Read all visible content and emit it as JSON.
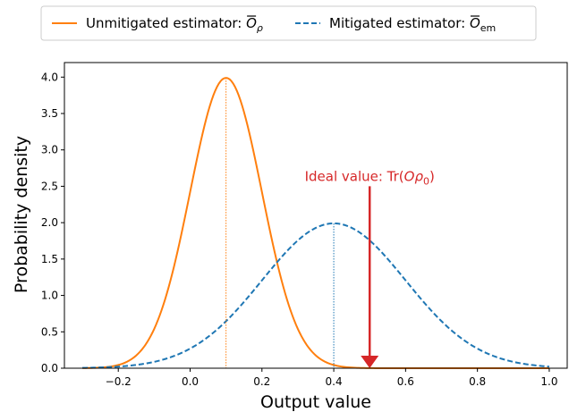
{
  "chart_data": {
    "type": "line",
    "xlabel": "Output value",
    "ylabel": "Probability density",
    "xlim": [
      -0.35,
      1.05
    ],
    "ylim": [
      0,
      4.2
    ],
    "xticks": [
      -0.2,
      0.0,
      0.2,
      0.4,
      0.6,
      0.8,
      1.0
    ],
    "xtick_labels": [
      "−0.2",
      "0.0",
      "0.2",
      "0.4",
      "0.6",
      "0.8",
      "1.0"
    ],
    "yticks": [
      0.0,
      0.5,
      1.0,
      1.5,
      2.0,
      2.5,
      3.0,
      3.5,
      4.0
    ],
    "ytick_labels": [
      "0.0",
      "0.5",
      "1.0",
      "1.5",
      "2.0",
      "2.5",
      "3.0",
      "3.5",
      "4.0"
    ],
    "grid": false,
    "legend_position": "top-outside",
    "series": [
      {
        "name": "Unmitigated estimator: O̅ρ",
        "legend_main": "Unmitigated estimator: ",
        "legend_symbol": "O",
        "legend_sub": "ρ",
        "style": "solid",
        "color": "#ff7f0e",
        "x_range": [
          -0.3,
          1.0
        ],
        "mean": 0.1,
        "std": 0.1,
        "peak": 3.99,
        "mean_marker_line": "dotted"
      },
      {
        "name": "Mitigated estimator: O̅em",
        "legend_main": "Mitigated estimator: ",
        "legend_symbol": "O",
        "legend_sub": "em",
        "style": "dashed",
        "color": "#1f77b4",
        "x_range": [
          -0.3,
          1.0
        ],
        "mean": 0.4,
        "std": 0.2,
        "peak": 1.99,
        "mean_marker_line": "dotted"
      }
    ],
    "annotation": {
      "text_prefix": "Ideal value: Tr(",
      "text_math": "Oρ",
      "text_sub": "0",
      "text_suffix": ")",
      "color": "#d62728",
      "x": 0.5,
      "arrow_from_y": 2.5,
      "arrow_to_y": 0.0
    }
  }
}
